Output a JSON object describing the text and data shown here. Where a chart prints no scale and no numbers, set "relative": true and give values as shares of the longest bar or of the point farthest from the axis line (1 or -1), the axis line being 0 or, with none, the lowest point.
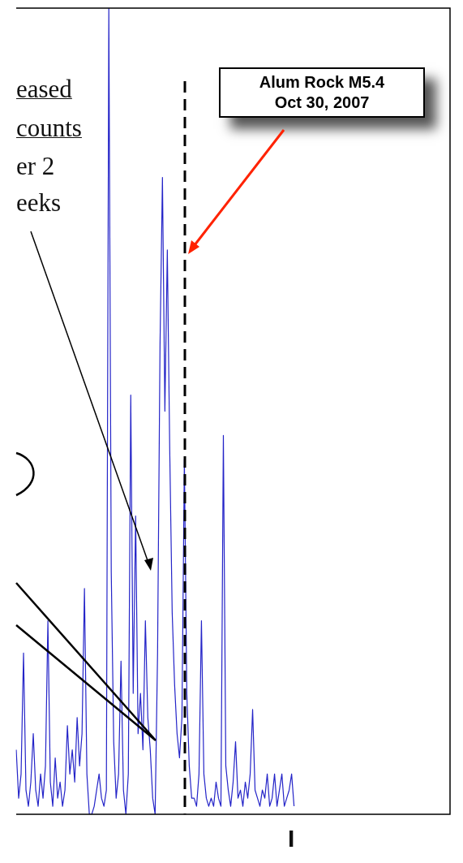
{
  "chart_data": {
    "type": "line",
    "relative": true,
    "categories": [
      null,
      null,
      null,
      null,
      null,
      null,
      null,
      null,
      null,
      null,
      null,
      null,
      null,
      null,
      null,
      null,
      null,
      null,
      null,
      null,
      null,
      null,
      null,
      null,
      null,
      null,
      null,
      null,
      null,
      null,
      null,
      null,
      null,
      null,
      null,
      null,
      null,
      null,
      null,
      null,
      null,
      null,
      null,
      null,
      null,
      null,
      null,
      null,
      null,
      null,
      null,
      null,
      null,
      null,
      null,
      null,
      null,
      null,
      null,
      null,
      null,
      null,
      null,
      null,
      null,
      null,
      null,
      null,
      null,
      null,
      null,
      null,
      null,
      null,
      null,
      null,
      null,
      null,
      null,
      null,
      null,
      null,
      null,
      null,
      null,
      null,
      null,
      null,
      null,
      null,
      null,
      null,
      null,
      null,
      null,
      null,
      null,
      null,
      null,
      null,
      null,
      null,
      null,
      null,
      null,
      null,
      null,
      null,
      null,
      null,
      null,
      null,
      null,
      null,
      null,
      null,
      null,
      null,
      null,
      null,
      null,
      null,
      null,
      null,
      null,
      null,
      null,
      null,
      null,
      null,
      null,
      null,
      null,
      null,
      null,
      null,
      null,
      null,
      null,
      null,
      null,
      null,
      null,
      null,
      null,
      null,
      null,
      null,
      null,
      null,
      null,
      null,
      null,
      null,
      null,
      null,
      null,
      null,
      null,
      null,
      null,
      null,
      null,
      null,
      null,
      null,
      null,
      null,
      null,
      null,
      null,
      null,
      null,
      null,
      null,
      null,
      null,
      null,
      null
    ],
    "color": "#2424c8",
    "values": [
      0.08,
      0.02,
      0.05,
      0.2,
      0.03,
      0.01,
      0.04,
      0.1,
      0.03,
      0.01,
      0.05,
      0.02,
      0.06,
      0.24,
      0.04,
      0.01,
      0.07,
      0.02,
      0.04,
      0.01,
      0.03,
      0.11,
      0.05,
      0.08,
      0.04,
      0.12,
      0.06,
      0.1,
      0.28,
      0.05,
      0,
      0,
      0.01,
      0.03,
      0.05,
      0.02,
      0.01,
      0.03,
      1.0,
      0.3,
      0.09,
      0.02,
      0.05,
      0.19,
      0.03,
      0,
      0.05,
      0.52,
      0.15,
      0.37,
      0.1,
      0.15,
      0.08,
      0.24,
      0.12,
      0.08,
      0.02,
      0,
      0.2,
      0.58,
      0.79,
      0.5,
      0.7,
      0.45,
      0.25,
      0.16,
      0.1,
      0.07,
      0.12,
      0.44,
      0.15,
      0.06,
      0.02,
      0.02,
      0.01,
      0.05,
      0.24,
      0.05,
      0.02,
      0.01,
      0.02,
      0.01,
      0.04,
      0.02,
      0.01,
      0.47,
      0.06,
      0.03,
      0.01,
      0.04,
      0.09,
      0.02,
      0.03,
      0.01,
      0.04,
      0.02,
      0.05,
      0.13,
      0.03,
      0.02,
      0.01,
      0.03,
      0.02,
      0.05,
      0.01,
      0.02,
      0.05,
      0.01,
      0.03,
      0.05,
      0.01,
      0.02,
      0.03,
      0.05,
      0.01,
      null,
      null,
      null,
      null,
      null,
      null,
      null,
      null,
      null,
      null,
      null,
      null,
      null,
      null,
      null,
      null,
      null,
      null,
      null,
      null,
      null,
      null,
      null,
      null,
      null,
      null,
      null,
      null,
      null,
      null,
      null,
      null,
      null,
      null,
      null,
      null,
      null,
      null,
      null,
      null,
      null,
      null,
      null,
      null,
      null,
      null,
      null,
      null,
      null,
      null,
      null,
      null,
      null,
      null,
      null,
      null,
      null,
      null,
      null,
      null,
      null,
      null,
      null,
      null
    ],
    "annotations": [
      "eased",
      "counts",
      "er 2",
      "eeks",
      "I",
      "Alum Rock M5.4\nOct 30, 2007"
    ]
  }
}
